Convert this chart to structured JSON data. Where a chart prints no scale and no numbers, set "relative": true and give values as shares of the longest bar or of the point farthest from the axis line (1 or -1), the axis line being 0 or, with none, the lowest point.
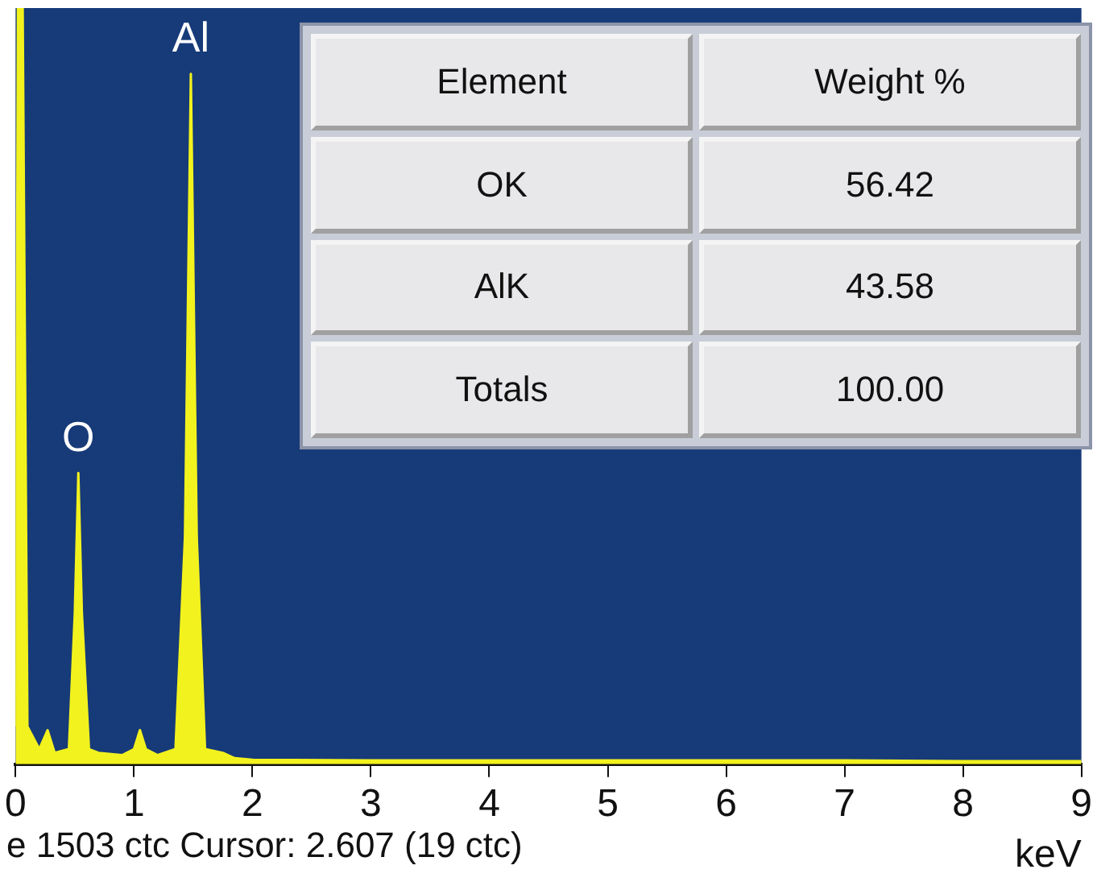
{
  "chart_data": [
    {
      "type": "area",
      "xlabel": "keV",
      "relative": true,
      "color": "#f2f21e",
      "x": [
        0,
        0.02,
        0.06,
        0.1,
        0.2,
        0.27,
        0.33,
        0.45,
        0.5,
        0.53,
        0.56,
        0.62,
        0.7,
        0.9,
        1.0,
        1.05,
        1.1,
        1.2,
        1.35,
        1.43,
        1.48,
        1.53,
        1.6,
        1.75,
        1.85,
        2.0,
        3,
        4,
        5,
        6,
        7,
        8,
        9
      ],
      "values": [
        0.05,
        1,
        1,
        0.05,
        0.02,
        0.045,
        0.015,
        0.02,
        0.2,
        0.385,
        0.2,
        0.02,
        0.015,
        0.012,
        0.02,
        0.045,
        0.02,
        0.012,
        0.02,
        0.3,
        0.913,
        0.3,
        0.02,
        0.015,
        0.008,
        0.006,
        0.005,
        0.005,
        0.005,
        0.005,
        0.005,
        0.004,
        0.004
      ],
      "xlim": [
        0,
        9
      ],
      "xticks": [
        0,
        1,
        2,
        3,
        4,
        5,
        6,
        7,
        8,
        9
      ],
      "annotations": [
        {
          "text": "O",
          "x": 0.53,
          "y": 0.385
        },
        {
          "text": "Al",
          "x": 1.48,
          "y": 0.913
        },
        "e 1503 ctc Cursor: 2.607 (19 ctc)"
      ]
    },
    {
      "type": "other",
      "annotations": [
        "Element",
        "Weight %",
        "OK",
        "56.42",
        "AlK",
        "43.58",
        "Totals",
        "100.00"
      ]
    }
  ]
}
